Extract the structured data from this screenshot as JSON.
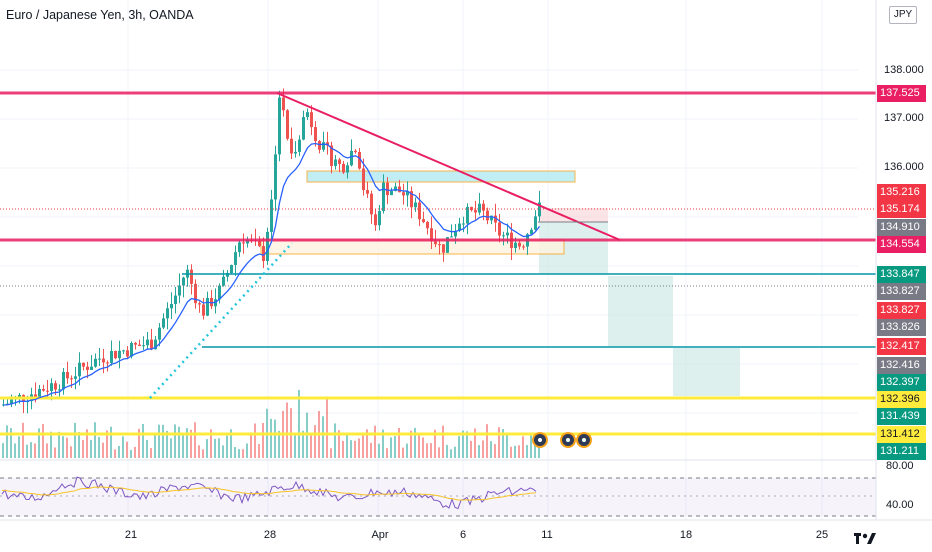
{
  "symbol_title": "Euro / Japanese Yen, 3h, OANDA",
  "currency_badge": "JPY",
  "price_axis_ticks": [
    {
      "text": "138.000",
      "price": 138.0
    },
    {
      "text": "137.000",
      "price": 137.0
    },
    {
      "text": "136.000",
      "price": 136.0
    }
  ],
  "price_labels": [
    {
      "text": "137.525",
      "price": 137.525,
      "color": "#e91e63"
    },
    {
      "text": "135.216",
      "price": 135.216,
      "color": "#f23645"
    },
    {
      "text": "135.174",
      "price": 135.174,
      "color": "#f23645"
    },
    {
      "text": "134.910",
      "price": 134.91,
      "color": "#787b86"
    },
    {
      "text": "134.554",
      "price": 134.554,
      "color": "#e91e63"
    },
    {
      "text": "133.847",
      "price": 133.847,
      "color": "#089981"
    },
    {
      "text": "133.827",
      "price": 133.827,
      "color": "#787b86"
    },
    {
      "text": "133.827",
      "price": 133.827,
      "color": "#f23645"
    },
    {
      "text": "133.826",
      "price": 133.826,
      "color": "#787b86"
    },
    {
      "text": "132.417",
      "price": 132.417,
      "color": "#f23645"
    },
    {
      "text": "132.416",
      "price": 132.416,
      "color": "#787b86"
    },
    {
      "text": "132.397",
      "price": 132.397,
      "color": "#089981"
    },
    {
      "text": "132.396",
      "price": 132.396,
      "color": "#ffeb3b"
    },
    {
      "text": "131.439",
      "price": 131.439,
      "color": "#089981"
    },
    {
      "text": "131.412",
      "price": 131.412,
      "color": "#ffeb3b"
    },
    {
      "text": "131.211",
      "price": 131.211,
      "color": "#089981"
    }
  ],
  "oscillator_ticks": [
    {
      "text": "80.00",
      "value": 80
    },
    {
      "text": "40.00",
      "value": 40
    }
  ],
  "time_axis": [
    {
      "text": "21"
    },
    {
      "text": "28"
    },
    {
      "text": "Apr"
    },
    {
      "text": "6"
    },
    {
      "text": "11"
    },
    {
      "text": "18"
    },
    {
      "text": "25"
    }
  ],
  "colors": {
    "up": "#26a69a",
    "down": "#ef5350",
    "resistance": "#e91e63",
    "support": "#ffeb3b",
    "zone": "#00bcd4",
    "ma": "#2962ff",
    "rsi": "#7e57c2",
    "rsi_ma": "#f7c325"
  },
  "event_icons": [
    "economic-event-icon",
    "economic-event-icon",
    "economic-event-icon"
  ],
  "brand": "TradingView"
}
